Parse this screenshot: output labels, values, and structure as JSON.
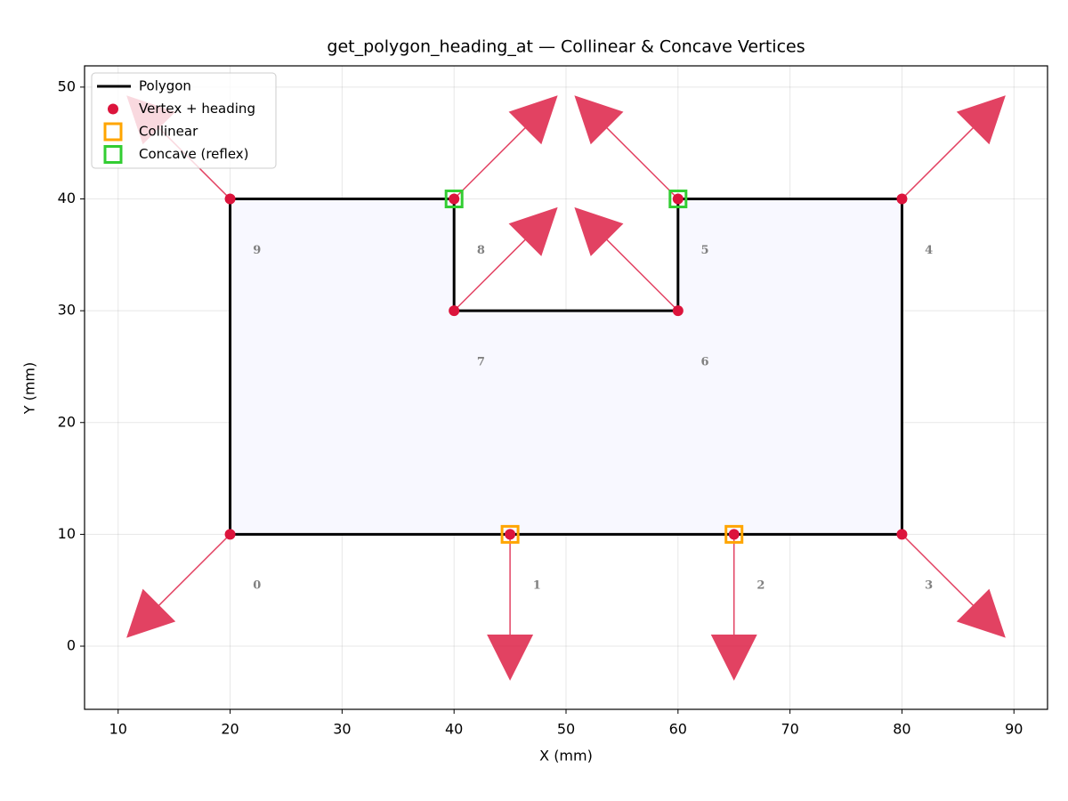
{
  "chart_data": {
    "type": "polygon",
    "title": "get_polygon_heading_at — Collinear & Concave Vertices",
    "xlabel": "X (mm)",
    "ylabel": "Y (mm)",
    "x": [
      20,
      45,
      65,
      80,
      80,
      60,
      60,
      40,
      40,
      20
    ],
    "y": [
      10,
      10,
      10,
      10,
      40,
      40,
      30,
      30,
      40,
      40
    ],
    "headings": [
      225,
      270,
      270,
      315,
      45,
      135,
      135,
      45,
      45,
      135
    ],
    "vertex_labels": [
      "0",
      "1",
      "2",
      "3",
      "4",
      "5",
      "6",
      "7",
      "8",
      "9"
    ],
    "collinear": [
      1,
      2
    ],
    "concave": [
      5,
      8
    ],
    "xlim": [
      7,
      93
    ],
    "ylim": [
      -5.65,
      51.9
    ],
    "xticks": [
      10,
      20,
      30,
      40,
      50,
      60,
      70,
      80,
      90
    ],
    "yticks": [
      0,
      10,
      20,
      30,
      40,
      50
    ],
    "grid": true,
    "legend": "upper left",
    "polygon_color": "#000000",
    "fill_color": "#f8f8ff",
    "vertex_color": "#dc143c",
    "collinear_color": "#ffa500",
    "concave_color": "#32cd32",
    "legend_items": [
      {
        "name": "Polygon",
        "color": "#000000"
      },
      {
        "name": "Vertex + heading",
        "color": "#dc143c"
      },
      {
        "name": "Collinear",
        "color": "#ffa500"
      },
      {
        "name": "Concave (reflex)",
        "color": "#32cd32"
      }
    ]
  }
}
